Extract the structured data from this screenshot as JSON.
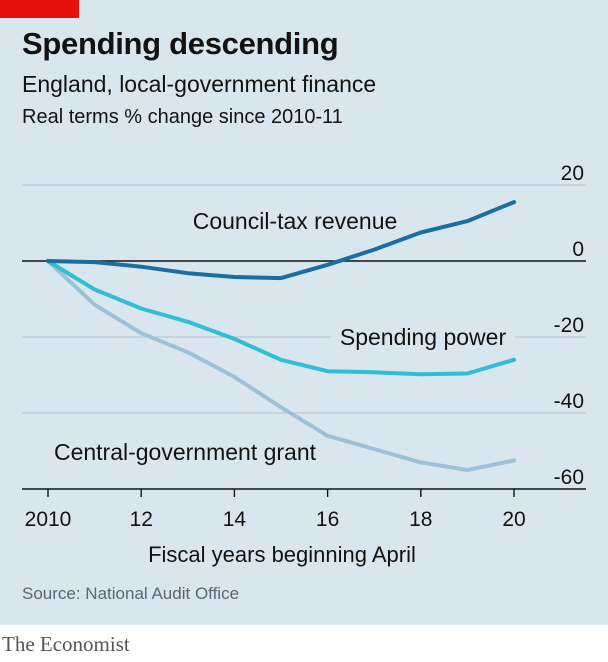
{
  "header": {
    "title": "Spending descending",
    "subtitle": "England, local-government finance",
    "units": "Real terms % change since 2010-11"
  },
  "footer": {
    "source": "Source: National Audit Office",
    "brand": "The Economist"
  },
  "colors": {
    "background": "#dae6ee",
    "accent": "#e3120b",
    "council_tax": "#1a6ea0",
    "spending_power": "#2ebfd4",
    "central_grant": "#9ec1d6"
  },
  "chart_data": {
    "type": "line",
    "title": "Spending descending",
    "subtitle": "England, local-government finance",
    "ylabel": "Real terms % change since 2010-11",
    "xlabel": "Fiscal years beginning April",
    "x": [
      2010,
      2011,
      2012,
      2013,
      2014,
      2015,
      2016,
      2017,
      2018,
      2019,
      2020
    ],
    "xlim": [
      2010,
      2020
    ],
    "ylim": [
      -60,
      20
    ],
    "x_ticks": [
      2010,
      2012,
      2014,
      2016,
      2018,
      2020
    ],
    "x_tick_labels": [
      "2010",
      "12",
      "14",
      "16",
      "18",
      "20"
    ],
    "y_ticks": [
      20,
      0,
      -20,
      -40,
      -60
    ],
    "y_tick_labels": [
      "20",
      "0",
      "-20",
      "-40",
      "-60"
    ],
    "grid": true,
    "series": [
      {
        "name": "Council-tax revenue",
        "color": "#1a6ea0",
        "values": [
          0,
          -0.3,
          -1.5,
          -3.2,
          -4.2,
          -4.5,
          -1,
          3,
          7.5,
          10.5,
          15.5
        ]
      },
      {
        "name": "Spending power",
        "color": "#2ebfd4",
        "values": [
          0,
          -7.5,
          -12.5,
          -16,
          -20.5,
          -26,
          -29,
          -29.3,
          -29.8,
          -29.6,
          -26
        ]
      },
      {
        "name": "Central-government grant",
        "color": "#9ec1d6",
        "values": [
          0,
          -11.5,
          -19,
          -24,
          -30.5,
          -38.5,
          -46,
          -49.5,
          -53,
          -55,
          -52.5
        ]
      }
    ]
  }
}
